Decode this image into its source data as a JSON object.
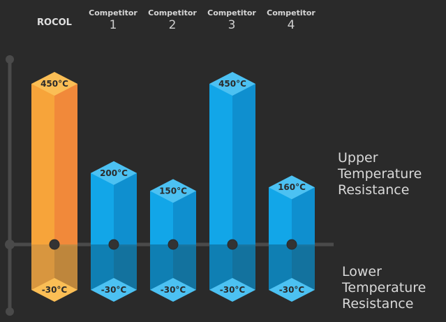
{
  "chart_data": {
    "type": "bar",
    "categories": [
      {
        "line1": "ROCOL",
        "line2": ""
      },
      {
        "line1": "Competitor",
        "line2": "1"
      },
      {
        "line1": "Competitor",
        "line2": "2"
      },
      {
        "line1": "Competitor",
        "line2": "3"
      },
      {
        "line1": "Competitor",
        "line2": "4"
      }
    ],
    "upper_values": [
      450,
      200,
      150,
      450,
      160
    ],
    "lower_values": [
      -30,
      -30,
      -30,
      -30,
      -30
    ],
    "upper_labels": [
      "450°C",
      "200°C",
      "150°C",
      "450°C",
      "160°C"
    ],
    "lower_labels": [
      "-30°C",
      "-30°C",
      "-30°C",
      "-30°C",
      "-30°C"
    ],
    "upper_annotation": "Upper\nTemperature\nResistance",
    "lower_annotation": "Lower\nTemperature\nResistance",
    "ylim": [
      -30,
      450
    ],
    "colors": {
      "highlight_front": "#f7a43a",
      "highlight_side": "#f1893a",
      "highlight_top": "#fbbe55",
      "highlight_lower": "#d8963f",
      "bar_front": "#12a6e8",
      "bar_side": "#0f8fcf",
      "bar_top": "#4cc1f2",
      "bar_lower": "#0f7fb3",
      "axis": "#4a4a4a"
    }
  }
}
